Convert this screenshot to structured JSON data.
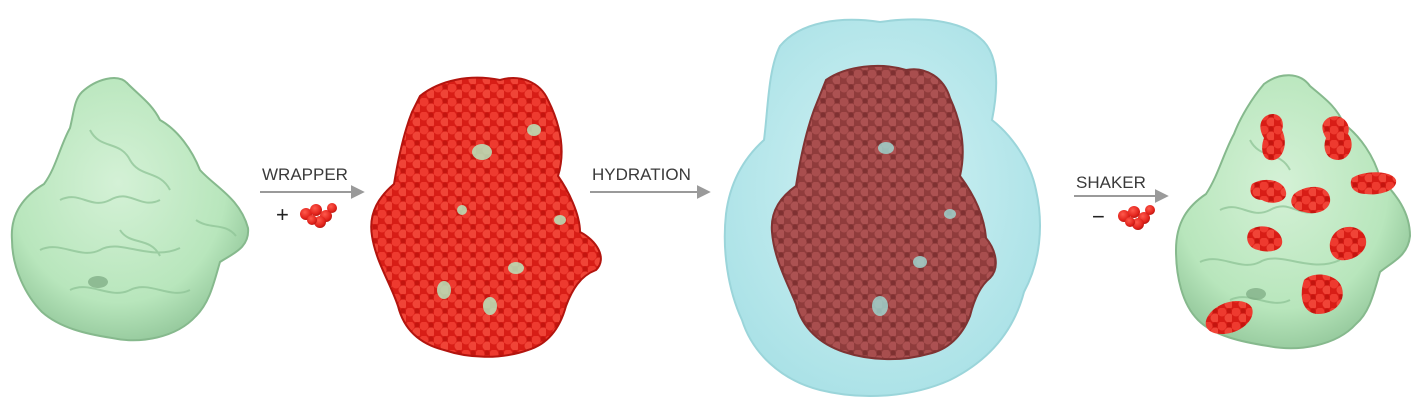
{
  "steps": [
    {
      "label": "WRAPPER",
      "sign": "+"
    },
    {
      "label": "HYDRATION",
      "sign": ""
    },
    {
      "label": "SHAKER",
      "sign": "−"
    }
  ],
  "colors": {
    "protein_surface": "#b8e6bc",
    "protein_shade": "#8fc497",
    "ligand_red": "#e2231c",
    "ligand_dark_red": "#9c3a3a",
    "water_shell": "#b4e6ea",
    "arrow_gray": "#9a9a9a"
  },
  "panels": [
    {
      "name": "apo-protein",
      "depicts": "protein-surface"
    },
    {
      "name": "wrapped-protein",
      "depicts": "protein-covered-with-ligands"
    },
    {
      "name": "hydrated-protein",
      "depicts": "wrapped-protein-in-water-shell"
    },
    {
      "name": "shaken-protein",
      "depicts": "protein-with-bound-ligand-clusters"
    }
  ]
}
